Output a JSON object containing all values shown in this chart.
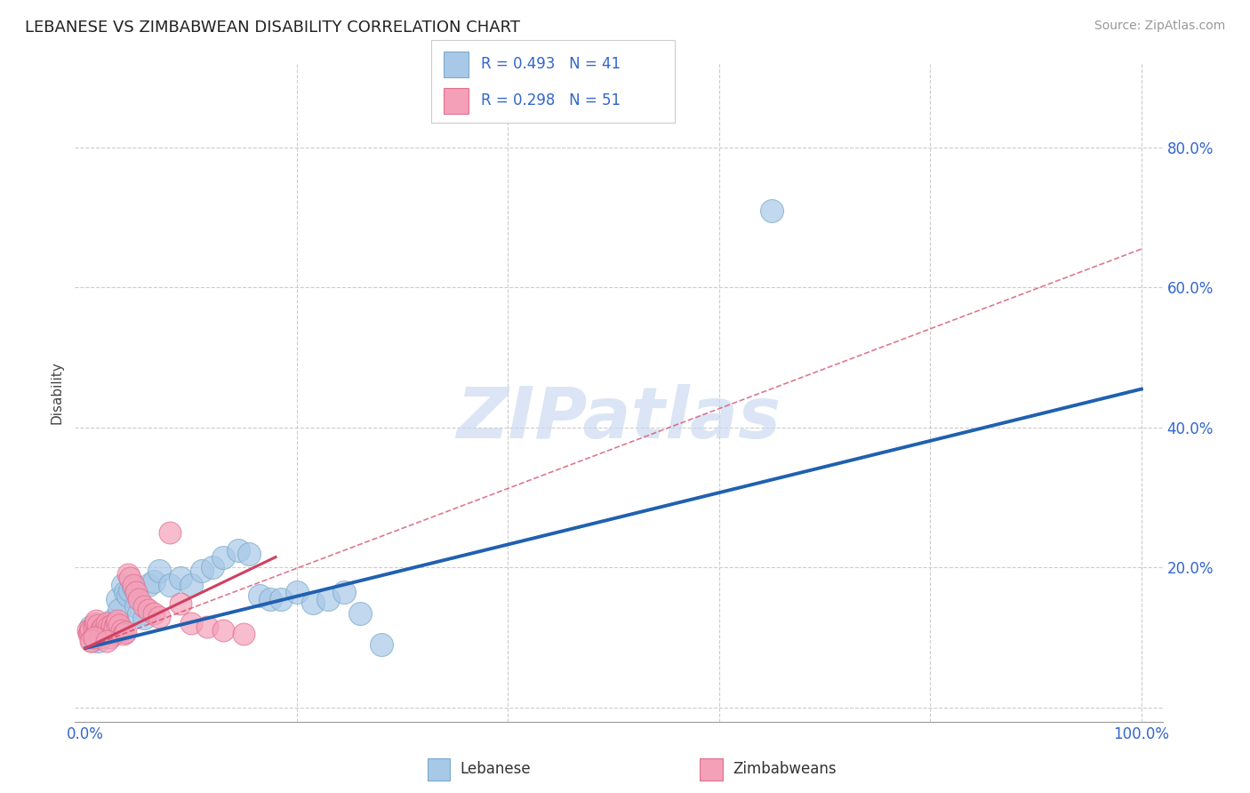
{
  "title": "LEBANESE VS ZIMBABWEAN DISABILITY CORRELATION CHART",
  "source_text": "Source: ZipAtlas.com",
  "ylabel": "Disability",
  "watermark": "ZIPatlas",
  "xlim": [
    -0.01,
    1.02
  ],
  "ylim": [
    -0.02,
    0.92
  ],
  "x_ticks": [
    0.0,
    0.2,
    0.4,
    0.6,
    0.8,
    1.0
  ],
  "x_tick_labels": [
    "0.0%",
    "",
    "",
    "",
    "",
    "100.0%"
  ],
  "y_ticks": [
    0.0,
    0.2,
    0.4,
    0.6,
    0.8
  ],
  "y_tick_labels": [
    "",
    "20.0%",
    "40.0%",
    "60.0%",
    "80.0%"
  ],
  "legend_r_blue": "R = 0.493",
  "legend_n_blue": "N = 41",
  "legend_r_pink": "R = 0.298",
  "legend_n_pink": "N = 51",
  "legend_label_blue": "Lebanese",
  "legend_label_pink": "Zimbabweans",
  "blue_color": "#a8c8e8",
  "pink_color": "#f4a0b8",
  "blue_edge_color": "#7aaac8",
  "pink_edge_color": "#e07090",
  "blue_line_color": "#2060b0",
  "pink_line_color": "#d04060",
  "text_color": "#3366cc",
  "title_color": "#222222",
  "grid_color": "#cccccc",
  "blue_scatter_x": [
    0.005,
    0.01,
    0.012,
    0.015,
    0.016,
    0.018,
    0.02,
    0.022,
    0.025,
    0.028,
    0.03,
    0.032,
    0.035,
    0.038,
    0.04,
    0.042,
    0.045,
    0.048,
    0.05,
    0.055,
    0.06,
    0.065,
    0.07,
    0.08,
    0.09,
    0.1,
    0.11,
    0.12,
    0.13,
    0.145,
    0.155,
    0.165,
    0.175,
    0.185,
    0.2,
    0.215,
    0.23,
    0.245,
    0.26,
    0.28,
    0.65
  ],
  "blue_scatter_y": [
    0.115,
    0.1,
    0.095,
    0.105,
    0.108,
    0.112,
    0.118,
    0.11,
    0.125,
    0.108,
    0.155,
    0.14,
    0.175,
    0.165,
    0.16,
    0.168,
    0.172,
    0.145,
    0.135,
    0.128,
    0.175,
    0.18,
    0.195,
    0.175,
    0.185,
    0.175,
    0.195,
    0.2,
    0.215,
    0.225,
    0.22,
    0.16,
    0.155,
    0.155,
    0.165,
    0.15,
    0.155,
    0.165,
    0.135,
    0.09,
    0.71
  ],
  "pink_scatter_x": [
    0.002,
    0.003,
    0.004,
    0.005,
    0.006,
    0.007,
    0.008,
    0.009,
    0.01,
    0.011,
    0.012,
    0.013,
    0.014,
    0.015,
    0.016,
    0.017,
    0.018,
    0.019,
    0.02,
    0.021,
    0.022,
    0.023,
    0.024,
    0.025,
    0.026,
    0.027,
    0.028,
    0.029,
    0.03,
    0.032,
    0.034,
    0.036,
    0.038,
    0.04,
    0.042,
    0.045,
    0.048,
    0.05,
    0.055,
    0.06,
    0.065,
    0.07,
    0.08,
    0.09,
    0.1,
    0.115,
    0.13,
    0.15,
    0.005,
    0.008,
    0.02
  ],
  "pink_scatter_y": [
    0.11,
    0.105,
    0.108,
    0.112,
    0.095,
    0.1,
    0.115,
    0.12,
    0.125,
    0.108,
    0.118,
    0.105,
    0.1,
    0.112,
    0.108,
    0.115,
    0.11,
    0.105,
    0.12,
    0.108,
    0.115,
    0.1,
    0.112,
    0.118,
    0.105,
    0.108,
    0.115,
    0.12,
    0.125,
    0.118,
    0.11,
    0.105,
    0.108,
    0.19,
    0.185,
    0.175,
    0.165,
    0.155,
    0.145,
    0.14,
    0.135,
    0.13,
    0.25,
    0.148,
    0.12,
    0.115,
    0.11,
    0.105,
    0.095,
    0.1,
    0.095
  ],
  "blue_line_x": [
    0.0,
    1.0
  ],
  "blue_line_y": [
    0.085,
    0.455
  ],
  "pink_solid_line_x": [
    0.0,
    0.18
  ],
  "pink_solid_line_y": [
    0.085,
    0.215
  ],
  "pink_dash_line_x": [
    0.0,
    1.0
  ],
  "pink_dash_line_y": [
    0.085,
    0.655
  ]
}
